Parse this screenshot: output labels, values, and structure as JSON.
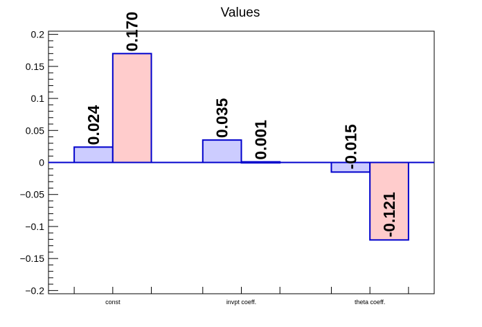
{
  "chart_data": {
    "type": "bar",
    "title": "Values",
    "xlabel": "",
    "ylabel": "",
    "categories": [
      "const",
      "invpt coeff.",
      "theta coeff."
    ],
    "series": [
      {
        "values": [
          0.024,
          0.035,
          -0.015
        ],
        "labels": [
          "0.024",
          "0.035",
          "-0.015"
        ],
        "fill": "#ccccff",
        "stroke": "#0000cc"
      },
      {
        "values": [
          0.17,
          0.001,
          -0.121
        ],
        "labels": [
          "0.170",
          "0.001",
          "-0.121"
        ],
        "fill": "#ffcccc",
        "stroke": "#0000cc"
      }
    ],
    "ylim": [
      -0.205,
      0.205
    ],
    "yticks": [
      {
        "value": 0.2,
        "label": "0.2"
      },
      {
        "value": 0.15,
        "label": "0.15"
      },
      {
        "value": 0.1,
        "label": "0.1"
      },
      {
        "value": 0.05,
        "label": "0.05"
      },
      {
        "value": 0,
        "label": "0"
      },
      {
        "value": -0.05,
        "label": "−0.05"
      },
      {
        "value": -0.1,
        "label": "−0.1"
      },
      {
        "value": -0.15,
        "label": "−0.15"
      },
      {
        "value": -0.2,
        "label": "−0.2"
      }
    ],
    "grid": false,
    "legend": "none"
  }
}
